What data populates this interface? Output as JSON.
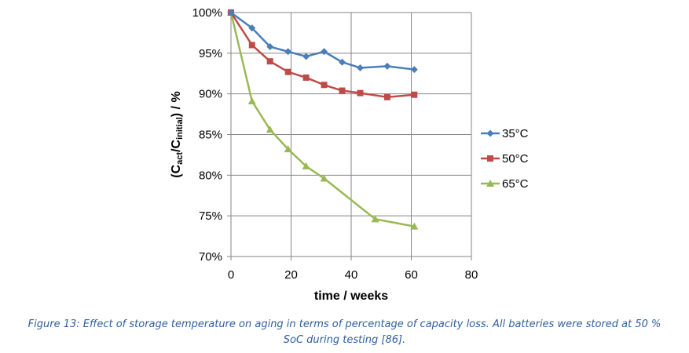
{
  "chart_data": {
    "type": "line",
    "xlabel": "time / weeks",
    "ylabel_parts": [
      "(C",
      "act",
      "/C",
      "initial",
      ") / %"
    ],
    "xlim": [
      0,
      80
    ],
    "ylim": [
      70,
      100
    ],
    "x_ticks": [
      0,
      20,
      40,
      60,
      80
    ],
    "x_tick_labels": [
      "0",
      "20",
      "40",
      "60",
      "80"
    ],
    "y_ticks": [
      70,
      75,
      80,
      85,
      90,
      95,
      100
    ],
    "y_tick_labels": [
      "70%",
      "75%",
      "80%",
      "85%",
      "90%",
      "95%",
      "100%"
    ],
    "grid": true,
    "legend_position": "right",
    "series": [
      {
        "name": "35°C",
        "color": "#4a7ebb",
        "marker": "diamond",
        "x": [
          0,
          7,
          13,
          19,
          25,
          31,
          37,
          43,
          52,
          61
        ],
        "y": [
          100,
          98.1,
          95.8,
          95.2,
          94.6,
          95.2,
          93.9,
          93.2,
          93.4,
          93.0
        ]
      },
      {
        "name": "50°C",
        "color": "#be4b48",
        "marker": "square",
        "x": [
          0,
          7,
          13,
          19,
          25,
          31,
          37,
          43,
          52,
          61
        ],
        "y": [
          100,
          96.0,
          94.0,
          92.7,
          92.0,
          91.1,
          90.4,
          90.1,
          89.6,
          89.9
        ]
      },
      {
        "name": "65°C",
        "color": "#98b954",
        "marker": "triangle",
        "x": [
          0,
          7,
          13,
          19,
          25,
          31,
          48,
          61
        ],
        "y": [
          100,
          89.1,
          85.6,
          83.2,
          81.1,
          79.6,
          74.6,
          73.7
        ]
      }
    ]
  },
  "caption": {
    "line1": "Figure 13: Effect of storage temperature on aging in terms of percentage of capacity loss. All batteries were stored at 50 %",
    "line2": "SoC during testing [86]."
  }
}
